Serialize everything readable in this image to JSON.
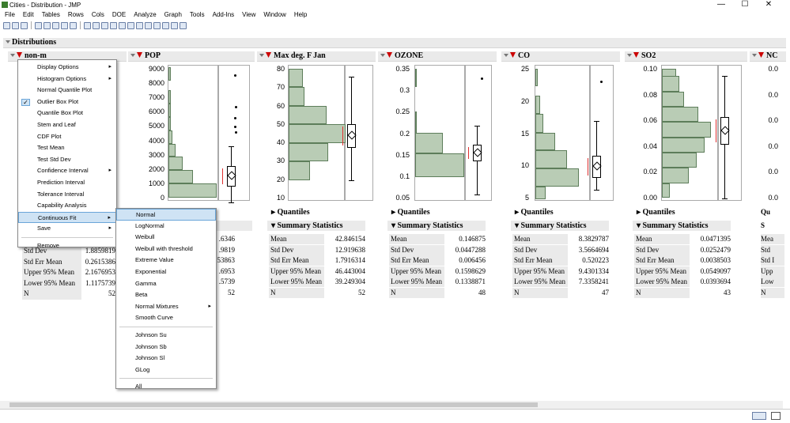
{
  "window": {
    "title": "Cities - Distribution - JMP",
    "min": "—",
    "max": "☐",
    "close": "✕"
  },
  "menubar": [
    "File",
    "Edit",
    "Tables",
    "Rows",
    "Cols",
    "DOE",
    "Analyze",
    "Graph",
    "Tools",
    "Add-Ins",
    "View",
    "Window",
    "Help"
  ],
  "report": {
    "title": "Distributions",
    "first_col": "non-m"
  },
  "columns": [
    {
      "name": "POP",
      "ticks": [
        "9000",
        "8000",
        "7000",
        "6000",
        "5000",
        "4000",
        "3000",
        "2000",
        "1000",
        "0"
      ]
    },
    {
      "name": "Max deg. F Jan",
      "ticks": [
        "80",
        "70",
        "60",
        "50",
        "40",
        "30",
        "20",
        "10"
      ],
      "stats": [
        [
          "Mean",
          "42.846154"
        ],
        [
          "Std Dev",
          "12.919638"
        ],
        [
          "Std Err Mean",
          "1.7916314"
        ],
        [
          "Upper 95% Mean",
          "46.443004"
        ],
        [
          "Lower 95% Mean",
          "39.249304"
        ],
        [
          "N",
          "52"
        ]
      ]
    },
    {
      "name": "OZONE",
      "ticks": [
        "0.35",
        "0.3",
        "0.25",
        "0.2",
        "0.15",
        "0.1",
        "0.05"
      ],
      "stats": [
        [
          "Mean",
          "0.146875"
        ],
        [
          "Std Dev",
          "0.0447288"
        ],
        [
          "Std Err Mean",
          "0.006456"
        ],
        [
          "Upper 95% Mean",
          "0.1598629"
        ],
        [
          "Lower 95% Mean",
          "0.1338871"
        ],
        [
          "N",
          "48"
        ]
      ]
    },
    {
      "name": "CO",
      "ticks": [
        "25",
        "20",
        "15",
        "10",
        "5"
      ],
      "stats": [
        [
          "Mean",
          "8.3829787"
        ],
        [
          "Std Dev",
          "3.5664694"
        ],
        [
          "Std Err Mean",
          "0.520223"
        ],
        [
          "Upper 95% Mean",
          "9.4301334"
        ],
        [
          "Lower 95% Mean",
          "7.3358241"
        ],
        [
          "N",
          "47"
        ]
      ]
    },
    {
      "name": "SO2",
      "ticks": [
        "0.10",
        "0.08",
        "0.06",
        "0.04",
        "0.02",
        "0.00"
      ],
      "stats": [
        [
          "Mean",
          "0.0471395"
        ],
        [
          "Std Dev",
          "0.0252479"
        ],
        [
          "Std Err Mean",
          "0.0038503"
        ],
        [
          "Upper 95% Mean",
          "0.0549097"
        ],
        [
          "Lower 95% Mean",
          "0.0393694"
        ],
        [
          "N",
          "43"
        ]
      ]
    },
    {
      "name": "NC",
      "ticks": [
        "0.0",
        "0.0",
        "0.0",
        "0.0",
        "0.0",
        "0.0"
      ]
    }
  ],
  "quantiles_label": "Quantiles",
  "summary_label": "Summary Statistics",
  "first_stats": [
    [
      "Std Dev",
      "1.8859819"
    ],
    [
      "Std Err Mean",
      "0.2615386"
    ],
    [
      "Upper 95% Mean",
      "2.1676953"
    ],
    [
      "Lower 95% Mean",
      "1.1175739"
    ],
    [
      "N",
      "52"
    ]
  ],
  "pop_stats_partial": [
    "ics",
    ".6346",
    ".9819",
    "53863",
    ".6953",
    ".5739",
    "52"
  ],
  "partial_labels": [
    "Qu",
    "S",
    "Mea",
    "Std",
    "Std I",
    "Upp",
    "Low",
    "N"
  ],
  "menu1": [
    "Display Options",
    "Histogram Options",
    "Normal Quantile Plot",
    "Outlier Box Plot",
    "Quantile Box Plot",
    "Stem and Leaf",
    "CDF Plot",
    "Test Mean",
    "Test Std Dev",
    "Confidence Interval",
    "Prediction Interval",
    "Tolerance Interval",
    "Capability Analysis",
    "Continuous Fit",
    "Save",
    "Remove"
  ],
  "menu2": [
    "Normal",
    "LogNormal",
    "Weibull",
    "Weibull with threshold",
    "Extreme Value",
    "Exponential",
    "Gamma",
    "Beta",
    "Normal Mixtures",
    "Smooth Curve",
    "Johnson Su",
    "Johnson Sb",
    "Johnson Sl",
    "GLog",
    "All"
  ],
  "colors": {
    "bar_fill": "#b9ccb5",
    "bar_stroke": "#5d7d5a",
    "menu_highlight": "#cfe3f4",
    "red_bracket": "#e03030"
  },
  "checkmark": "✓"
}
